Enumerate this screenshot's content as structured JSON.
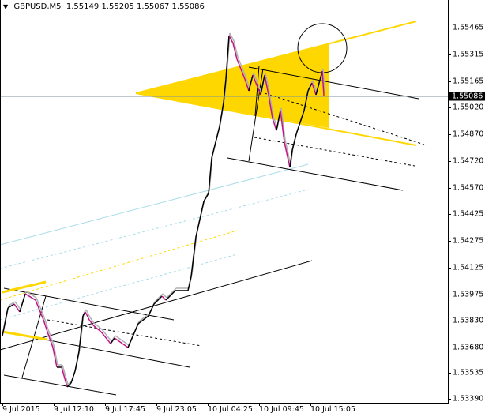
{
  "header": {
    "symbol": "GBPUSD,M5",
    "open": "1.55149",
    "high": "1.55205",
    "low": "1.55067",
    "close": "1.55086",
    "menu_icon": "triangle-down-icon"
  },
  "current_price_label": "1.55086",
  "colors": {
    "candle_up": "#000000",
    "candle_down": "#c0158a",
    "wick": "#b0b0b0",
    "triangle": "#ffd700",
    "price_line": "#7d90a0",
    "light_blue": "#a8dce8"
  },
  "chart_data": {
    "type": "line",
    "title": "",
    "y_axis_ticks": [
      "1.55465",
      "1.55315",
      "1.55165",
      "1.55020",
      "1.54870",
      "1.54720",
      "1.54570",
      "1.54425",
      "1.54275",
      "1.54125",
      "1.53975",
      "1.53830",
      "1.53680",
      "1.53535",
      "1.53390"
    ],
    "x_axis_ticks": [
      "9 Jul 2015",
      "9 Jul 12:10",
      "9 Jul 17:45",
      "9 Jul 23:05",
      "10 Jul 04:25",
      "10 Jul 09:45",
      "10 Jul 15:05"
    ],
    "ylim": [
      1.5336,
      1.5558
    ],
    "grid": false,
    "series": [
      {
        "points": [
          [
            "9 Jul 06:45",
            1.53744
          ],
          [
            "9 Jul 07:20",
            1.53899
          ],
          [
            "9 Jul 08:00",
            1.53921
          ],
          [
            "9 Jul 08:35",
            1.53877
          ],
          [
            "9 Jul 09:10",
            1.53978
          ],
          [
            "9 Jul 10:15",
            1.53943
          ],
          [
            "9 Jul 11:05",
            1.53833
          ],
          [
            "9 Jul 11:30",
            1.53766
          ],
          [
            "9 Jul 12:05",
            1.53678
          ],
          [
            "9 Jul 12:30",
            1.53568
          ],
          [
            "9 Jul 13:00",
            1.53568
          ],
          [
            "9 Jul 13:35",
            1.53458
          ],
          [
            "9 Jul 14:00",
            1.5348
          ],
          [
            "9 Jul 14:25",
            1.53546
          ],
          [
            "9 Jul 14:50",
            1.53656
          ],
          [
            "9 Jul 15:15",
            1.53855
          ],
          [
            "9 Jul 15:30",
            1.53877
          ],
          [
            "9 Jul 15:55",
            1.53833
          ],
          [
            "9 Jul 16:20",
            1.53802
          ],
          [
            "9 Jul 17:10",
            1.53766
          ],
          [
            "9 Jul 18:10",
            1.537
          ],
          [
            "9 Jul 18:35",
            1.53731
          ],
          [
            "9 Jul 20:00",
            1.53678
          ],
          [
            "9 Jul 21:05",
            1.53811
          ],
          [
            "9 Jul 22:10",
            1.53855
          ],
          [
            "9 Jul 22:45",
            1.53921
          ],
          [
            "9 Jul 23:35",
            1.53965
          ],
          [
            "10 Jul 00:00",
            1.53943
          ],
          [
            "10 Jul 01:00",
            1.53996
          ],
          [
            "10 Jul 02:20",
            1.53996
          ],
          [
            "10 Jul 02:40",
            1.54075
          ],
          [
            "10 Jul 03:10",
            1.54296
          ],
          [
            "10 Jul 04:00",
            1.54494
          ],
          [
            "10 Jul 04:30",
            1.54539
          ],
          [
            "10 Jul 04:50",
            1.54737
          ],
          [
            "10 Jul 05:40",
            1.54914
          ],
          [
            "10 Jul 06:05",
            1.55046
          ],
          [
            "10 Jul 06:20",
            1.55178
          ],
          [
            "10 Jul 06:40",
            1.55421
          ],
          [
            "10 Jul 07:05",
            1.55378
          ],
          [
            "10 Jul 07:30",
            1.55289
          ],
          [
            "10 Jul 08:20",
            1.55178
          ],
          [
            "10 Jul 08:45",
            1.55112
          ],
          [
            "10 Jul 09:10",
            1.552
          ],
          [
            "10 Jul 10:00",
            1.5509
          ],
          [
            "10 Jul 10:25",
            1.552
          ],
          [
            "10 Jul 10:50",
            1.5509
          ],
          [
            "10 Jul 11:15",
            1.54958
          ],
          [
            "10 Jul 11:40",
            1.54891
          ],
          [
            "10 Jul 12:05",
            1.55002
          ],
          [
            "10 Jul 12:30",
            1.54825
          ],
          [
            "10 Jul 13:05",
            1.54684
          ],
          [
            "10 Jul 13:20",
            1.54781
          ],
          [
            "10 Jul 13:45",
            1.5487
          ],
          [
            "10 Jul 14:10",
            1.54936
          ],
          [
            "10 Jul 14:35",
            1.55002
          ],
          [
            "10 Jul 15:00",
            1.55112
          ],
          [
            "10 Jul 15:25",
            1.55156
          ],
          [
            "10 Jul 15:50",
            1.5509
          ],
          [
            "10 Jul 16:10",
            1.55156
          ],
          [
            "10 Jul 16:30",
            1.55222
          ],
          [
            "10 Jul 16:40",
            1.55086
          ]
        ]
      }
    ]
  }
}
